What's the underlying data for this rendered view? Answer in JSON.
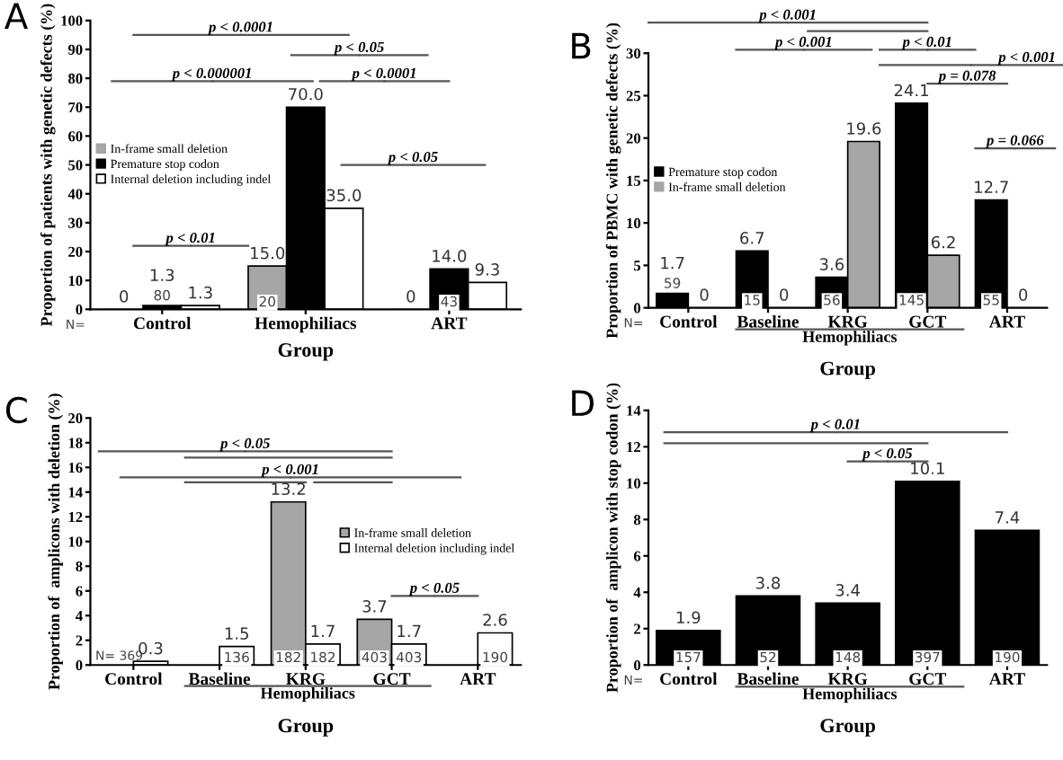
{
  "chart_data": [
    {
      "type": "bar",
      "title": "A",
      "xlabel": "Group",
      "ylabel": "Proportion of patients with genetic defects (%)",
      "categories": [
        "Control",
        "Hemophiliacs",
        "ART"
      ],
      "series": [
        {
          "name": "In-frame small deletion",
          "color": "#a6a6a6",
          "values": [
            0,
            15.0,
            0
          ],
          "value_labels": [
            "0",
            "15.0",
            "0"
          ]
        },
        {
          "name": "Premature stop codon",
          "color": "#000000",
          "values": [
            1.3,
            70.0,
            14.0
          ],
          "value_labels": [
            "1.3",
            "70.0",
            "14.0"
          ]
        },
        {
          "name": "Internal deletion including indel",
          "color": "#ffffff",
          "values": [
            1.3,
            35.0,
            9.3
          ],
          "value_labels": [
            "1.3",
            "35.0",
            "9.3"
          ]
        }
      ],
      "ylim": [
        0,
        100
      ],
      "yticks": [
        0,
        10,
        20,
        30,
        40,
        50,
        60,
        70,
        80,
        90,
        100
      ],
      "legend": "left",
      "grid": false,
      "annotations": [
        "p < 0.0001",
        "p < 0.05",
        "p < 0.000001",
        "p < 0.0001",
        "p < 0.05",
        "p < 0.01",
        "N=",
        {
          "text": "80",
          "x": "Control",
          "y": 0
        },
        {
          "text": "20",
          "x": "Hemophiliacs",
          "y": 0
        },
        {
          "text": "43",
          "x": "ART",
          "y": 0
        }
      ]
    },
    {
      "type": "bar",
      "title": "B",
      "xlabel": "Group",
      "ylabel": "Proportion of PBMC with genetic defects (%)",
      "categories": [
        "Control",
        "Baseline",
        "KRG",
        "GCT",
        "ART"
      ],
      "series": [
        {
          "name": "Premature stop codon",
          "color": "#000000",
          "values": [
            1.7,
            6.7,
            3.6,
            24.1,
            12.7
          ],
          "value_labels": [
            "1.7",
            "6.7",
            "3.6",
            "24.1",
            "12.7"
          ]
        },
        {
          "name": "In-frame small deletion",
          "color": "#a6a6a6",
          "values": [
            0,
            0,
            19.6,
            6.2,
            0
          ],
          "value_labels": [
            "0",
            "0",
            "19.6",
            "6.2",
            "0"
          ]
        }
      ],
      "ylim": [
        0,
        30
      ],
      "yticks": [
        0,
        5,
        10,
        15,
        20,
        25,
        30
      ],
      "legend": "left",
      "grid": false,
      "annotations": [
        "p < 0.001",
        "p < 0.001",
        "p < 0.01",
        "p < 0.001",
        "p = 0.078",
        "p = 0.066",
        "Hemophiliacs",
        "N=",
        {
          "text": "59",
          "x": "Control",
          "y": 0
        },
        {
          "text": "15",
          "x": "Baseline",
          "y": 0
        },
        {
          "text": "56",
          "x": "KRG",
          "y": 0
        },
        {
          "text": "145",
          "x": "GCT",
          "y": 0
        },
        {
          "text": "55",
          "x": "ART",
          "y": 0
        }
      ]
    },
    {
      "type": "bar",
      "title": "C",
      "xlabel": "Group",
      "ylabel": "Proportion of  amplicons with deletion (%)",
      "categories": [
        "Control",
        "Baseline",
        "KRG",
        "GCT",
        "ART"
      ],
      "series": [
        {
          "name": "In-frame small deletion",
          "color": "#a6a6a6",
          "values": [
            null,
            null,
            13.2,
            3.7,
            null
          ],
          "value_labels": [
            null,
            null,
            "13.2",
            "3.7",
            null
          ]
        },
        {
          "name": "Internal deletion including indel",
          "color": "#ffffff",
          "values": [
            0.3,
            1.5,
            1.7,
            1.7,
            2.6
          ],
          "value_labels": [
            "0.3",
            "1.5",
            "1.7",
            "1.7",
            "2.6"
          ]
        }
      ],
      "ylim": [
        0,
        20
      ],
      "yticks": [
        0,
        2,
        4,
        6,
        8,
        10,
        12,
        14,
        16,
        18,
        20
      ],
      "legend": "right",
      "grid": false,
      "annotations": [
        "p < 0.05",
        "p < 0.001",
        "p < 0.05",
        "Hemophiliacs",
        "N= 369",
        {
          "text": "136",
          "x": "Baseline",
          "y": 0
        },
        {
          "text": "182",
          "x": "KRG",
          "y": 0
        },
        {
          "text": "182",
          "x": "KRG",
          "y": 0
        },
        {
          "text": "403",
          "x": "GCT",
          "y": 0
        },
        {
          "text": "403",
          "x": "GCT",
          "y": 0
        },
        {
          "text": "190",
          "x": "ART",
          "y": 0
        }
      ]
    },
    {
      "type": "bar",
      "title": "D",
      "xlabel": "Group",
      "ylabel": "Proportion of  amplicon with stop codon (%)",
      "categories": [
        "Control",
        "Baseline",
        "KRG",
        "GCT",
        "ART"
      ],
      "series": [
        {
          "color": "#000000",
          "values": [
            1.9,
            3.8,
            3.4,
            10.1,
            7.4
          ],
          "value_labels": [
            "1.9",
            "3.8",
            "3.4",
            "10.1",
            "7.4"
          ]
        }
      ],
      "ylim": [
        0,
        14
      ],
      "yticks": [
        0,
        2,
        4,
        6,
        8,
        10,
        12,
        14
      ],
      "grid": false,
      "annotations": [
        "p < 0.01",
        "p < 0.05",
        "Hemophiliacs",
        "N=",
        {
          "text": "157",
          "x": "Control",
          "y": 0
        },
        {
          "text": "52",
          "x": "Baseline",
          "y": 0
        },
        {
          "text": "148",
          "x": "KRG",
          "y": 0
        },
        {
          "text": "397",
          "x": "GCT",
          "y": 0
        },
        {
          "text": "190",
          "x": "ART",
          "y": 0
        }
      ]
    }
  ]
}
